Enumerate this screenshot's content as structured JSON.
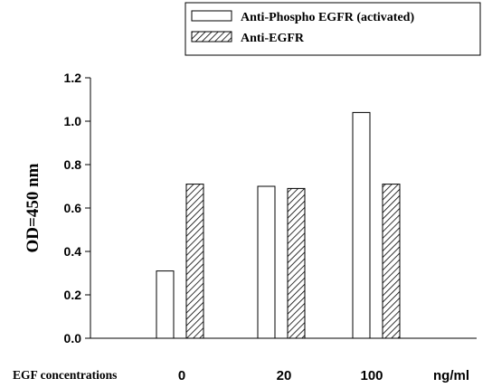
{
  "chart_data": {
    "type": "bar",
    "categories": [
      "0",
      "20",
      "100"
    ],
    "series": [
      {
        "name": "Anti-Phospho EGFR (activated)",
        "values": [
          0.31,
          0.7,
          1.04
        ],
        "pattern": "open"
      },
      {
        "name": "Anti-EGFR",
        "values": [
          0.71,
          0.69,
          0.71
        ],
        "pattern": "hatched"
      }
    ],
    "title": "",
    "xlabel": "EGF concentrations",
    "x_unit_label": "ng/ml",
    "ylabel": "OD=450 nm",
    "ylim": [
      0,
      1.2
    ],
    "yticks": [
      "0.0",
      "0.2",
      "0.4",
      "0.6",
      "0.8",
      "1.0",
      "1.2"
    ],
    "grid": false,
    "legend_position": "top-right, outside plot area",
    "colors": {
      "bar_fill": "#ffffff",
      "stroke": "#000000",
      "background": "#ffffff"
    }
  }
}
